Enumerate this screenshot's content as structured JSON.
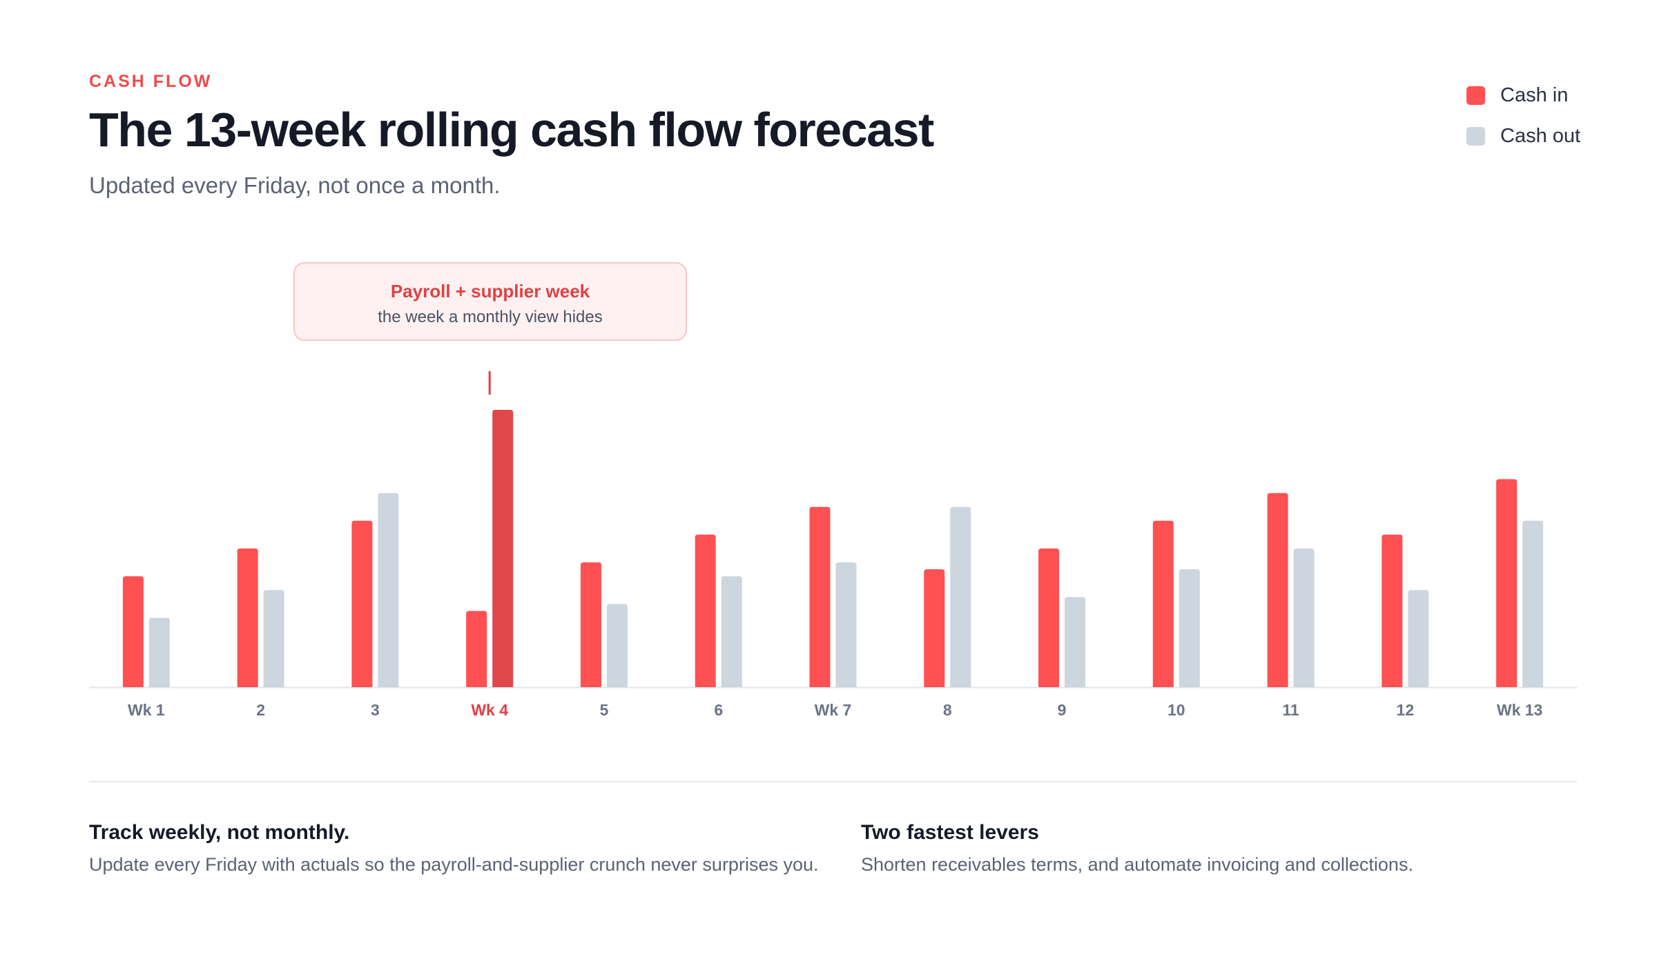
{
  "header": {
    "eyebrow": "CASH FLOW",
    "title": "The 13-week rolling cash flow forecast",
    "subtitle": "Updated every Friday, not once a month."
  },
  "legend": [
    {
      "label": "Cash in",
      "color": "#ff5052"
    },
    {
      "label": "Cash out",
      "color": "#cdd5df"
    }
  ],
  "callout": {
    "title": "Payroll + supplier week",
    "subtitle": "the week a monthly view hides",
    "week_index": 3,
    "color": "#e04043"
  },
  "chart_data": {
    "type": "bar",
    "categories": [
      "Wk 1",
      "2",
      "3",
      "Wk 4",
      "5",
      "6",
      "Wk 7",
      "8",
      "9",
      "10",
      "11",
      "12",
      "Wk 13"
    ],
    "series": [
      {
        "name": "Cash in",
        "color": "#ff5052",
        "values": [
          16,
          20,
          24,
          11,
          18,
          22,
          26,
          17,
          20,
          24,
          28,
          22,
          30
        ]
      },
      {
        "name": "Cash out",
        "color": "#cdd5df",
        "highlight_color": "#e0474a",
        "values": [
          10,
          14,
          28,
          40,
          12,
          16,
          18,
          26,
          13,
          17,
          20,
          14,
          24
        ]
      }
    ],
    "highlight_category": "Wk 4",
    "ylim": [
      0,
      40
    ],
    "grid": false,
    "legend_position": "top-right"
  },
  "notes": [
    {
      "title": "Track weekly, not monthly.",
      "text": "Update every Friday with actuals so the payroll-and-supplier crunch never surprises you."
    },
    {
      "title": "Two fastest levers",
      "text": "Shorten receivables terms, and automate invoicing and collections."
    }
  ]
}
